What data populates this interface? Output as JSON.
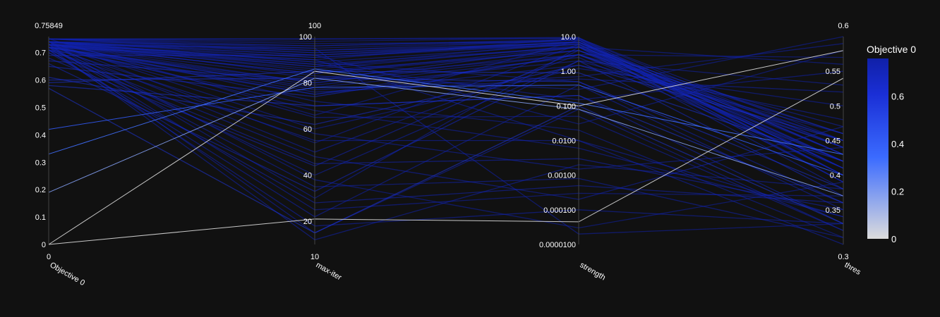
{
  "chart_data": {
    "type": "parallel_coordinates",
    "background": "#111111",
    "line_color_scale": [
      "#dcdcdc",
      "#3b6bff",
      "#1a2fd6",
      "#1020a8"
    ],
    "axes": [
      {
        "label": "Objective 0",
        "range": [
          0,
          0.75849
        ],
        "scale": "linear",
        "top_label": "0.75849",
        "bottom_label": "0",
        "ticks": [
          {
            "v": 0,
            "t": "0"
          },
          {
            "v": 0.1,
            "t": "0.1"
          },
          {
            "v": 0.2,
            "t": "0.2"
          },
          {
            "v": 0.3,
            "t": "0.3"
          },
          {
            "v": 0.4,
            "t": "0.4"
          },
          {
            "v": 0.5,
            "t": "0.5"
          },
          {
            "v": 0.6,
            "t": "0.6"
          },
          {
            "v": 0.7,
            "t": "0.7"
          }
        ]
      },
      {
        "label": "max-iter",
        "range": [
          10,
          100
        ],
        "scale": "linear",
        "top_label": "100",
        "bottom_label": "10",
        "ticks": [
          {
            "v": 20,
            "t": "20"
          },
          {
            "v": 40,
            "t": "40"
          },
          {
            "v": 60,
            "t": "60"
          },
          {
            "v": 80,
            "t": "80"
          },
          {
            "v": 100,
            "t": "100"
          }
        ]
      },
      {
        "label": "strength",
        "range": [
          1e-05,
          10
        ],
        "scale": "log",
        "top_label": "",
        "bottom_label": "",
        "ticks": [
          {
            "v": 1e-05,
            "t": "0.0000100"
          },
          {
            "v": 0.0001,
            "t": "0.000100"
          },
          {
            "v": 0.001,
            "t": "0.00100"
          },
          {
            "v": 0.01,
            "t": "0.0100"
          },
          {
            "v": 0.1,
            "t": "0.100"
          },
          {
            "v": 1,
            "t": "1.00"
          },
          {
            "v": 10,
            "t": "10.0"
          }
        ]
      },
      {
        "label": "thres",
        "range": [
          0.3,
          0.6
        ],
        "scale": "linear",
        "top_label": "0.6",
        "bottom_label": "0.3",
        "ticks": [
          {
            "v": 0.35,
            "t": "0.35"
          },
          {
            "v": 0.4,
            "t": "0.4"
          },
          {
            "v": 0.45,
            "t": "0.45"
          },
          {
            "v": 0.5,
            "t": "0.5"
          },
          {
            "v": 0.55,
            "t": "0.55"
          }
        ]
      }
    ],
    "colorbar": {
      "title": "Objective 0",
      "range": [
        0,
        0.75849
      ],
      "ticks": [
        {
          "v": 0,
          "t": "0"
        },
        {
          "v": 0.2,
          "t": "0.2"
        },
        {
          "v": 0.4,
          "t": "0.4"
        },
        {
          "v": 0.6,
          "t": "0.6"
        }
      ]
    },
    "lines": [
      [
        0.75,
        95,
        8,
        0.42
      ],
      [
        0.74,
        92,
        6,
        0.41
      ],
      [
        0.74,
        88,
        5,
        0.43
      ],
      [
        0.73,
        90,
        9,
        0.4
      ],
      [
        0.75,
        97,
        7,
        0.44
      ],
      [
        0.74,
        85,
        4,
        0.45
      ],
      [
        0.73,
        82,
        3,
        0.42
      ],
      [
        0.75,
        99,
        9.5,
        0.41
      ],
      [
        0.72,
        78,
        2,
        0.46
      ],
      [
        0.74,
        93,
        6,
        0.39
      ],
      [
        0.73,
        87,
        5,
        0.38
      ],
      [
        0.75,
        96,
        8.5,
        0.43
      ],
      [
        0.72,
        80,
        3,
        0.47
      ],
      [
        0.74,
        91,
        7,
        0.4
      ],
      [
        0.73,
        84,
        4,
        0.44
      ],
      [
        0.71,
        75,
        1.5,
        0.48
      ],
      [
        0.74,
        94,
        6.5,
        0.42
      ],
      [
        0.75,
        98,
        9,
        0.45
      ],
      [
        0.72,
        79,
        2.5,
        0.41
      ],
      [
        0.73,
        86,
        5.5,
        0.39
      ],
      [
        0.74,
        89,
        0.5,
        0.36
      ],
      [
        0.72,
        70,
        0.2,
        0.33
      ],
      [
        0.73,
        65,
        0.05,
        0.32
      ],
      [
        0.71,
        55,
        0.01,
        0.34
      ],
      [
        0.7,
        45,
        0.003,
        0.35
      ],
      [
        0.72,
        35,
        0.0008,
        0.31
      ],
      [
        0.73,
        25,
        0.0003,
        0.37
      ],
      [
        0.71,
        18,
        0.0001,
        0.33
      ],
      [
        0.74,
        92,
        0.03,
        0.58
      ],
      [
        0.73,
        88,
        0.15,
        0.55
      ],
      [
        0.72,
        76,
        0.6,
        0.52
      ],
      [
        0.74,
        60,
        1.2,
        0.5
      ],
      [
        0.73,
        50,
        3,
        0.57
      ],
      [
        0.72,
        40,
        2,
        0.53
      ],
      [
        0.74,
        30,
        5,
        0.56
      ],
      [
        0.71,
        22,
        0.4,
        0.35
      ],
      [
        0.73,
        15,
        0.08,
        0.32
      ],
      [
        0.72,
        12,
        0.002,
        0.38
      ],
      [
        0.7,
        28,
        0.0005,
        0.36
      ],
      [
        0.74,
        72,
        0.02,
        0.31
      ],
      [
        0.73,
        68,
        0.006,
        0.34
      ],
      [
        0.72,
        58,
        0.0015,
        0.44
      ],
      [
        0.71,
        48,
        0.0002,
        0.47
      ],
      [
        0.74,
        38,
        3e-05,
        0.39
      ],
      [
        0.73,
        95,
        2e-05,
        0.33
      ],
      [
        0.72,
        90,
        0.01,
        0.3
      ],
      [
        0.74,
        83,
        0.3,
        0.6
      ],
      [
        0.73,
        77,
        0.7,
        0.59
      ],
      [
        0.75,
        66,
        8,
        0.4
      ],
      [
        0.74,
        54,
        6,
        0.41
      ],
      [
        0.68,
        44,
        4,
        0.42
      ],
      [
        0.66,
        33,
        2,
        0.37
      ],
      [
        0.69,
        92,
        7,
        0.43
      ],
      [
        0.67,
        81,
        5,
        0.46
      ],
      [
        0.65,
        74,
        3,
        0.44
      ],
      [
        0.6,
        82,
        0.5,
        0.38
      ],
      [
        0.58,
        70,
        0.2,
        0.36
      ],
      [
        0.59,
        85,
        0.9,
        0.42
      ],
      [
        0.57,
        15,
        0.1,
        0.33
      ],
      [
        0.61,
        62,
        1.5,
        0.45
      ],
      [
        0.42,
        78,
        0.4,
        0.4
      ],
      [
        0.33,
        86,
        0.12,
        0.43
      ],
      [
        0.19,
        82,
        0.08,
        0.37
      ],
      [
        0.0,
        85,
        0.1,
        0.58
      ],
      [
        0.0,
        21,
        4.5e-05,
        0.54
      ],
      [
        0.75,
        94,
        8,
        0.4
      ],
      [
        0.74,
        87,
        7,
        0.43
      ],
      [
        0.73,
        91,
        6,
        0.41
      ],
      [
        0.75,
        99,
        9,
        0.44
      ],
      [
        0.74,
        96,
        8,
        0.39
      ],
      [
        0.73,
        80,
        4,
        0.46
      ],
      [
        0.72,
        75,
        3,
        0.45
      ],
      [
        0.74,
        89,
        6,
        0.42
      ],
      [
        0.75,
        93,
        7,
        0.41
      ],
      [
        0.73,
        84,
        5,
        0.4
      ]
    ]
  }
}
